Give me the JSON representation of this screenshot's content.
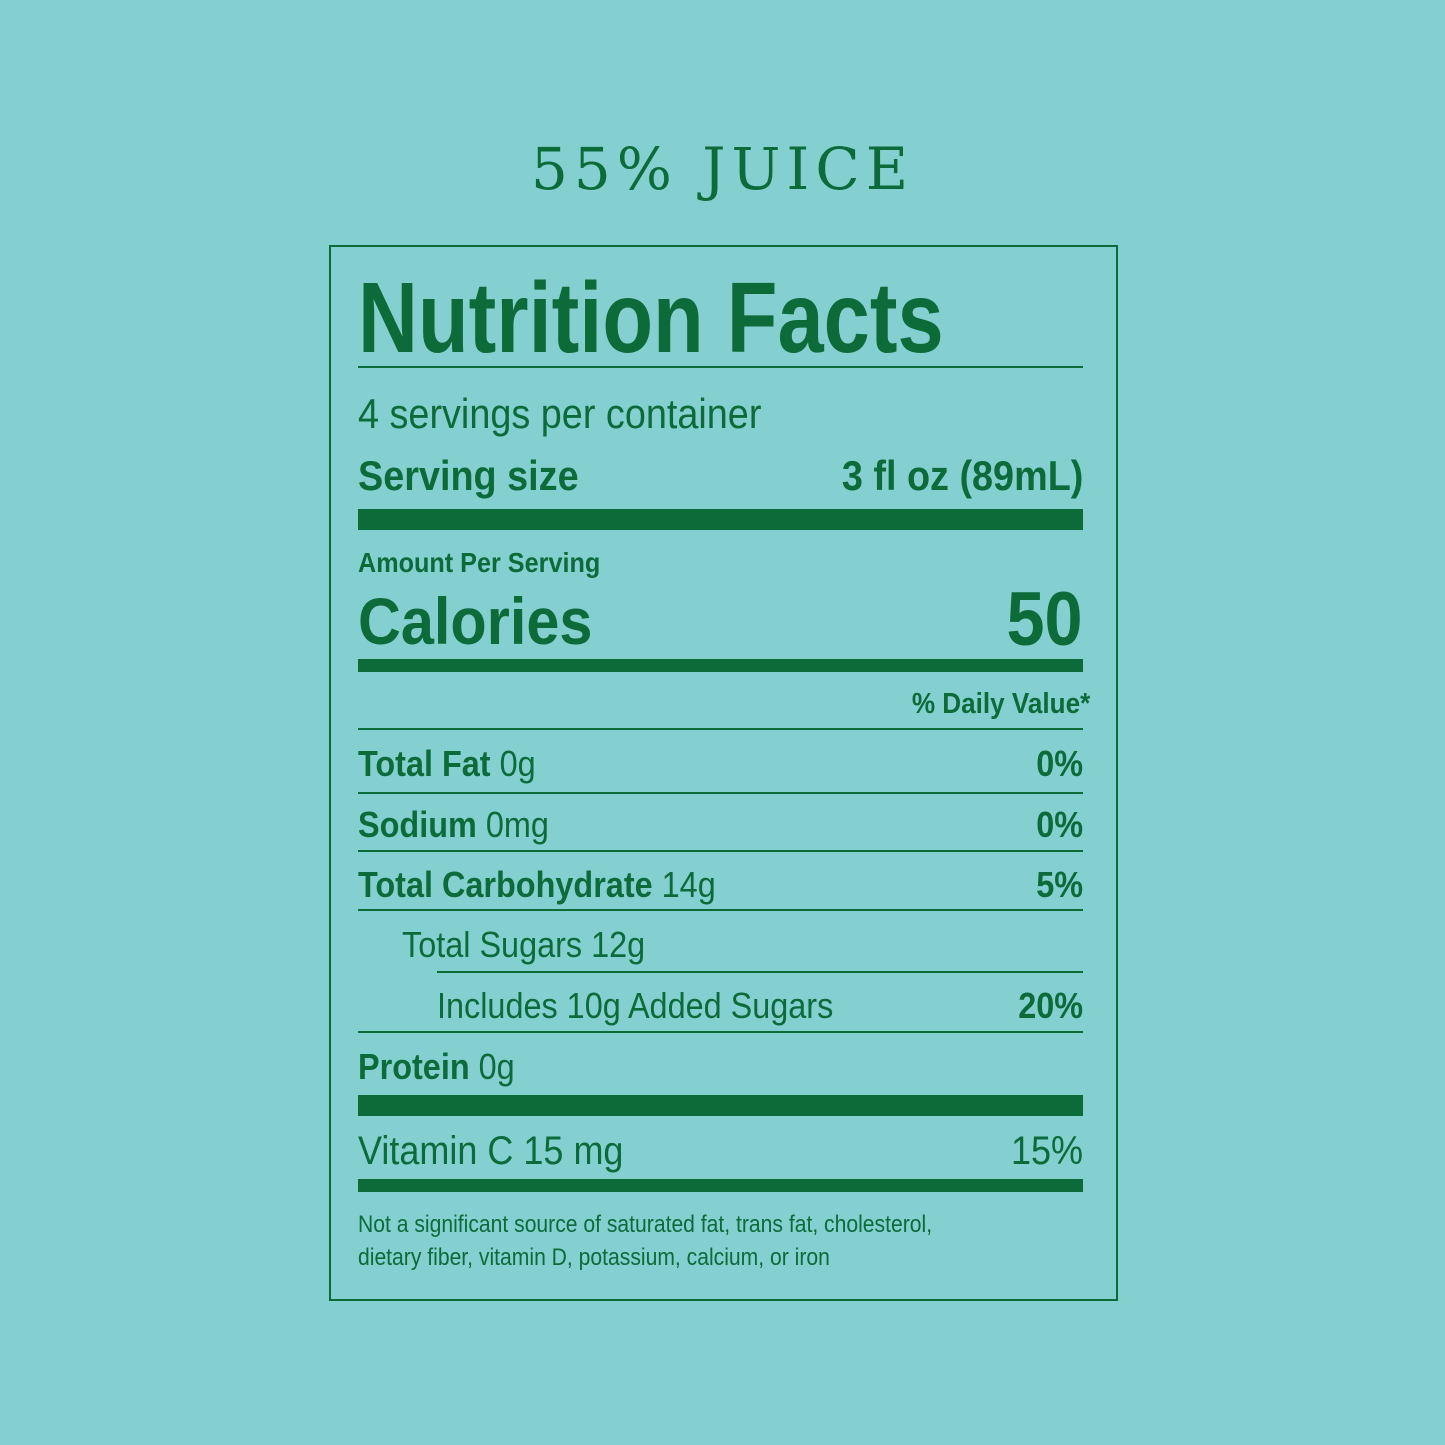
{
  "header": {
    "title": "55% JUICE"
  },
  "label": {
    "heading": "Nutrition Facts",
    "servings": "4 servings per container",
    "serving_size_label": "Serving size",
    "serving_size_value": "3 fl oz (89mL)",
    "amount_per_serving": "Amount Per Serving",
    "calories_label": "Calories",
    "calories_value": "50",
    "daily_value_header": "% Daily Value*",
    "nutrients": [
      {
        "name": "Total Fat",
        "amount": "0g",
        "dv": "0%"
      },
      {
        "name": "Sodium",
        "amount": "0mg",
        "dv": "0%"
      },
      {
        "name": "Total Carbohydrate",
        "amount": "14g",
        "dv": "5%"
      },
      {
        "name": "Total Sugars 12g"
      },
      {
        "name": "Includes 10g Added Sugars",
        "dv": "20%"
      },
      {
        "name": "Protein",
        "amount": "0g"
      }
    ],
    "vitamin": {
      "name": "Vitamin C 15 mg",
      "dv": "15%"
    },
    "footnote_line1": "Not a significant source of saturated fat, trans fat, cholesterol,",
    "footnote_line2": "dietary fiber, vitamin D, potassium, calcium, or iron"
  },
  "colors": {
    "background": "#84CFD0",
    "ink": "#0D6B3A"
  }
}
